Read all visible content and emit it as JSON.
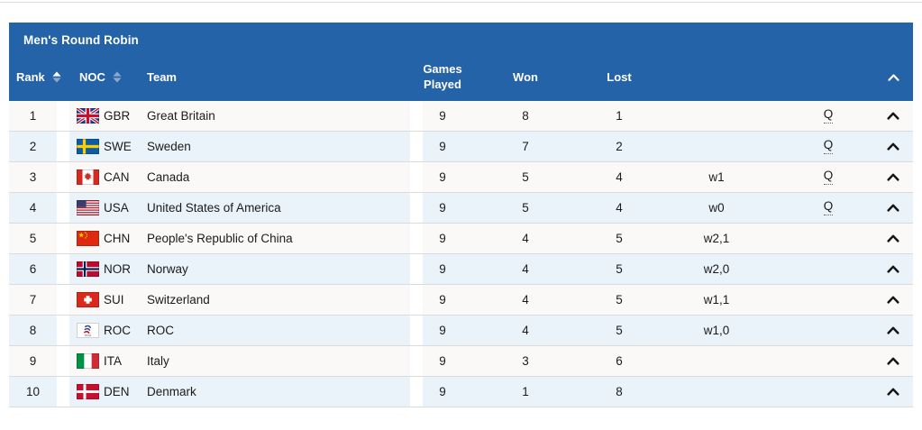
{
  "section": {
    "title": "Men's Round Robin"
  },
  "table": {
    "columns": {
      "rank": "Rank",
      "noc": "NOC",
      "team": "Team",
      "games_played": "Games Played",
      "won": "Won",
      "lost": "Lost"
    },
    "rows": [
      {
        "rank": "1",
        "noc": "GBR",
        "team": "Great Britain",
        "games_played": "9",
        "won": "8",
        "lost": "1",
        "tiebreak": "",
        "qualified": "Q"
      },
      {
        "rank": "2",
        "noc": "SWE",
        "team": "Sweden",
        "games_played": "9",
        "won": "7",
        "lost": "2",
        "tiebreak": "",
        "qualified": "Q"
      },
      {
        "rank": "3",
        "noc": "CAN",
        "team": "Canada",
        "games_played": "9",
        "won": "5",
        "lost": "4",
        "tiebreak": "w1",
        "qualified": "Q"
      },
      {
        "rank": "4",
        "noc": "USA",
        "team": "United States of America",
        "games_played": "9",
        "won": "5",
        "lost": "4",
        "tiebreak": "w0",
        "qualified": "Q"
      },
      {
        "rank": "5",
        "noc": "CHN",
        "team": "People's Republic of China",
        "games_played": "9",
        "won": "4",
        "lost": "5",
        "tiebreak": "w2,1",
        "qualified": ""
      },
      {
        "rank": "6",
        "noc": "NOR",
        "team": "Norway",
        "games_played": "9",
        "won": "4",
        "lost": "5",
        "tiebreak": "w2,0",
        "qualified": ""
      },
      {
        "rank": "7",
        "noc": "SUI",
        "team": "Switzerland",
        "games_played": "9",
        "won": "4",
        "lost": "5",
        "tiebreak": "w1,1",
        "qualified": ""
      },
      {
        "rank": "8",
        "noc": "ROC",
        "team": "ROC",
        "games_played": "9",
        "won": "4",
        "lost": "5",
        "tiebreak": "w1,0",
        "qualified": ""
      },
      {
        "rank": "9",
        "noc": "ITA",
        "team": "Italy",
        "games_played": "9",
        "won": "3",
        "lost": "6",
        "tiebreak": "",
        "qualified": ""
      },
      {
        "rank": "10",
        "noc": "DEN",
        "team": "Denmark",
        "games_played": "9",
        "won": "1",
        "lost": "8",
        "tiebreak": "",
        "qualified": ""
      }
    ]
  },
  "icons": {
    "rank_sort": "sort-arrows-ascending-active",
    "noc_sort": "sort-arrows-inactive",
    "header_collapse": "chevron-up",
    "row_expand": "chevron-up",
    "flags": [
      "GBR",
      "SWE",
      "CAN",
      "USA",
      "CHN",
      "NOR",
      "SUI",
      "ROC",
      "ITA",
      "DEN"
    ]
  },
  "colors": {
    "header_bg": "#2563A8",
    "header_text": "#FFFFFF",
    "row_light_bg": "#FAF9F7",
    "row_alt_bg": "#EAF2FA",
    "row_text": "#1B1B1B",
    "row_border": "#DBDBDB",
    "sort_active": "#FFFFFF",
    "sort_inactive": "#8FA9CE",
    "top_rule": "#DCDCDC"
  }
}
